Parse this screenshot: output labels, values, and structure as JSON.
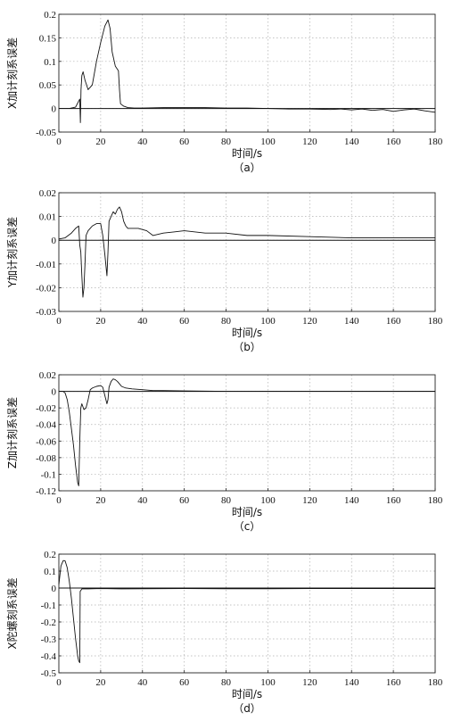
{
  "chart_data": [
    {
      "type": "line",
      "caption": "（a）",
      "xlabel": "时间/s",
      "ylabel": "X加计刻系误差",
      "xlim": [
        0,
        180
      ],
      "ylim": [
        -0.05,
        0.2
      ],
      "xticks": [
        0,
        20,
        40,
        60,
        80,
        100,
        120,
        140,
        160,
        180
      ],
      "yticks": [
        -0.05,
        0,
        0.05,
        0.1,
        0.15,
        0.2
      ],
      "ytick_labels": [
        "-0.05",
        "0",
        "0.05",
        "0.1",
        "0.15",
        "0.2"
      ],
      "grid": true,
      "reference_line": 0,
      "series": [
        {
          "x": [
            0,
            5,
            8,
            10,
            10.3,
            10.6,
            11,
            11.6,
            12.5,
            14,
            16,
            18,
            20,
            22,
            23.5,
            24.5,
            25.5,
            27,
            28.5,
            29,
            29.5,
            31,
            33,
            36,
            40,
            50,
            60,
            70,
            80,
            90,
            100,
            110,
            120,
            130,
            135,
            140,
            145,
            150,
            155,
            160,
            165,
            170,
            175,
            180
          ],
          "y": [
            0,
            0,
            0.003,
            0.02,
            -0.03,
            0.04,
            0.07,
            0.078,
            0.06,
            0.04,
            0.05,
            0.1,
            0.14,
            0.175,
            0.188,
            0.17,
            0.12,
            0.09,
            0.08,
            0.04,
            0.01,
            0.005,
            0.002,
            0.001,
            0.001,
            0.002,
            0.002,
            0.002,
            0.001,
            0.001,
            0.0,
            -0.001,
            -0.001,
            -0.002,
            -0.001,
            -0.003,
            -0.001,
            -0.004,
            -0.002,
            -0.006,
            -0.003,
            -0.001,
            -0.005,
            -0.008
          ]
        }
      ]
    },
    {
      "type": "line",
      "caption": "（b）",
      "xlabel": "时间/s",
      "ylabel": "Y加计刻系误差",
      "xlim": [
        0,
        180
      ],
      "ylim": [
        -0.03,
        0.02
      ],
      "xticks": [
        0,
        20,
        40,
        60,
        80,
        100,
        120,
        140,
        160,
        180
      ],
      "yticks": [
        -0.03,
        -0.02,
        -0.01,
        0,
        0.01,
        0.02
      ],
      "ytick_labels": [
        "-0.03",
        "-0.02",
        "-0.01",
        "0",
        "0.01",
        "0.02"
      ],
      "grid": true,
      "reference_line": 0,
      "series": [
        {
          "x": [
            0,
            3,
            6,
            8,
            9.5,
            10,
            10.5,
            11,
            11.5,
            12,
            12.5,
            13,
            14,
            16,
            18,
            20,
            21,
            22,
            23,
            23.5,
            24,
            25,
            26,
            27,
            28,
            29,
            30,
            31,
            32,
            33,
            35,
            38,
            42,
            45,
            50,
            55,
            60,
            70,
            80,
            90,
            100,
            120,
            140,
            160,
            180
          ],
          "y": [
            0.0005,
            0.001,
            0.003,
            0.005,
            0.006,
            -0.002,
            -0.005,
            -0.015,
            -0.024,
            -0.02,
            -0.01,
            0.002,
            0.004,
            0.006,
            0.007,
            0.007,
            0.002,
            -0.006,
            -0.015,
            -0.005,
            0.008,
            0.01,
            0.012,
            0.011,
            0.013,
            0.014,
            0.012,
            0.008,
            0.006,
            0.005,
            0.005,
            0.005,
            0.004,
            0.002,
            0.003,
            0.0035,
            0.004,
            0.003,
            0.003,
            0.002,
            0.002,
            0.0015,
            0.001,
            0.001,
            0.001
          ]
        }
      ]
    },
    {
      "type": "line",
      "caption": "（c）",
      "xlabel": "时间/s",
      "ylabel": "Z加计刻系误差",
      "xlim": [
        0,
        180
      ],
      "ylim": [
        -0.12,
        0.02
      ],
      "xticks": [
        0,
        20,
        40,
        60,
        80,
        100,
        120,
        140,
        160,
        180
      ],
      "yticks": [
        -0.12,
        -0.1,
        -0.08,
        -0.06,
        -0.04,
        -0.02,
        0,
        0.02
      ],
      "ytick_labels": [
        "-0.12",
        "-0.1",
        "-0.08",
        "-0.06",
        "-0.04",
        "-0.02",
        "0",
        "0.02"
      ],
      "grid": true,
      "reference_line": 0,
      "series": [
        {
          "x": [
            0,
            2,
            3,
            4,
            5,
            6,
            7,
            8,
            9,
            9.5,
            10,
            10.5,
            11,
            12,
            13,
            14,
            15,
            16,
            18,
            20,
            21,
            22,
            23,
            23.5,
            24,
            25,
            26,
            27,
            28,
            29,
            30,
            32,
            35,
            40,
            45,
            50,
            60,
            80,
            100,
            120,
            140,
            150,
            160,
            180
          ],
          "y": [
            0,
            0,
            -0.002,
            -0.01,
            -0.025,
            -0.045,
            -0.065,
            -0.09,
            -0.11,
            -0.114,
            -0.06,
            -0.02,
            -0.015,
            -0.022,
            -0.02,
            -0.01,
            0.002,
            0.004,
            0.006,
            0.007,
            0.005,
            -0.005,
            -0.015,
            -0.01,
            0.005,
            0.012,
            0.015,
            0.014,
            0.012,
            0.009,
            0.006,
            0.004,
            0.003,
            0.002,
            0.001,
            0.001,
            0.0005,
            0,
            0,
            0,
            0,
            0,
            0,
            0
          ]
        }
      ]
    },
    {
      "type": "line",
      "caption": "（d）",
      "xlabel": "时间/s",
      "ylabel": "X陀螺刻系误差",
      "xlim": [
        0,
        180
      ],
      "ylim": [
        -0.5,
        0.2
      ],
      "xticks": [
        0,
        20,
        40,
        60,
        80,
        100,
        120,
        140,
        160,
        180
      ],
      "yticks": [
        -0.5,
        -0.4,
        -0.3,
        -0.2,
        -0.1,
        0,
        0.1,
        0.2
      ],
      "ytick_labels": [
        "-0.5",
        "-0.4",
        "-0.3",
        "-0.2",
        "-0.1",
        "0",
        "0.1",
        "0.2"
      ],
      "grid": true,
      "reference_line": 0,
      "series": [
        {
          "x": [
            0,
            1,
            2,
            2.5,
            3,
            4,
            5,
            6,
            7,
            8,
            9,
            9.5,
            10,
            10.2,
            11,
            14,
            20,
            30,
            40,
            60,
            80,
            100,
            120,
            140,
            160,
            180
          ],
          "y": [
            0.02,
            0.13,
            0.16,
            0.162,
            0.16,
            0.12,
            0.04,
            -0.06,
            -0.18,
            -0.3,
            -0.4,
            -0.43,
            -0.44,
            -0.02,
            -0.005,
            -0.005,
            -0.003,
            -0.005,
            -0.004,
            -0.003,
            -0.004,
            -0.004,
            -0.003,
            -0.003,
            -0.003,
            -0.003
          ]
        }
      ]
    }
  ]
}
